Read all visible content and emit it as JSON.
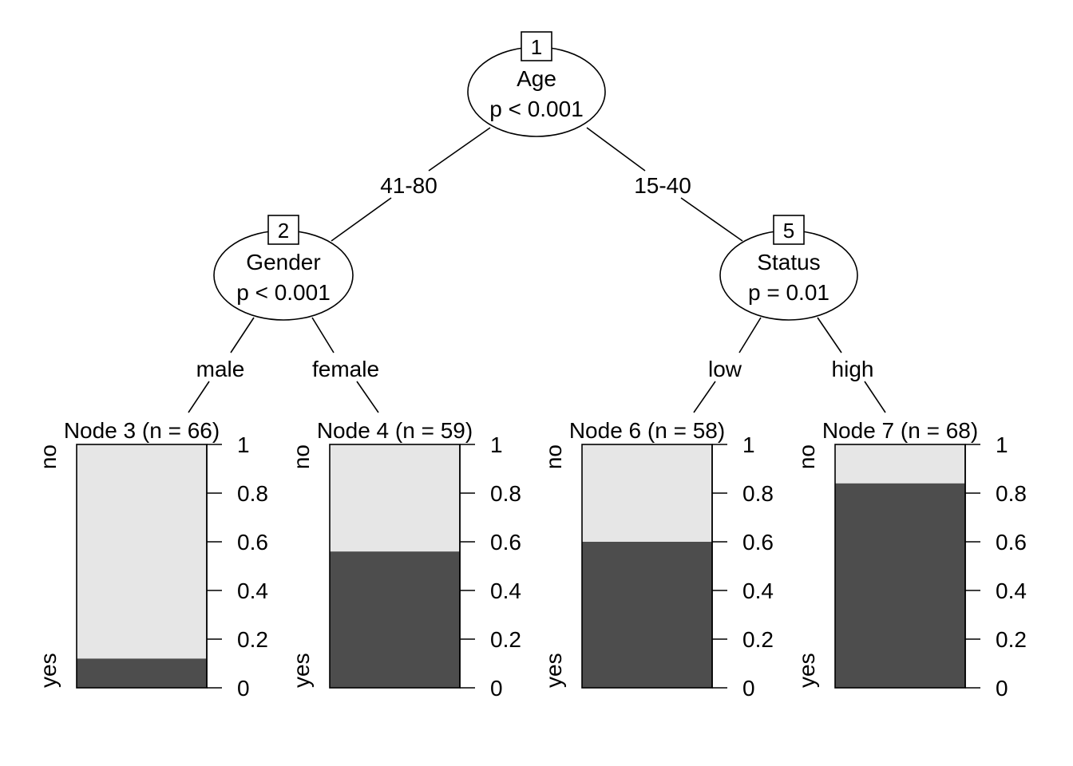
{
  "inner_nodes": [
    {
      "id": "1",
      "variable": "Age",
      "pvalue": "p < 0.001"
    },
    {
      "id": "2",
      "variable": "Gender",
      "pvalue": "p < 0.001"
    },
    {
      "id": "5",
      "variable": "Status",
      "pvalue": "p = 0.01"
    }
  ],
  "edges": [
    {
      "label": "41-80"
    },
    {
      "label": "15-40"
    },
    {
      "label": "male"
    },
    {
      "label": "female"
    },
    {
      "label": "low"
    },
    {
      "label": "high"
    }
  ],
  "terminal_nodes": [
    {
      "title": "Node 3 (n = 66)",
      "yes_fraction": 0.12
    },
    {
      "title": "Node 4 (n = 59)",
      "yes_fraction": 0.56
    },
    {
      "title": "Node 6 (n = 58)",
      "yes_fraction": 0.6
    },
    {
      "title": "Node 7 (n = 68)",
      "yes_fraction": 0.84
    }
  ],
  "category_labels": {
    "top": "no",
    "bottom": "yes"
  },
  "axis_ticks": [
    "0",
    "0.2",
    "0.4",
    "0.6",
    "0.8",
    "1"
  ],
  "colors": {
    "yes_fill": "#4d4d4d",
    "no_fill": "#e6e6e6",
    "stroke": "#000000"
  }
}
